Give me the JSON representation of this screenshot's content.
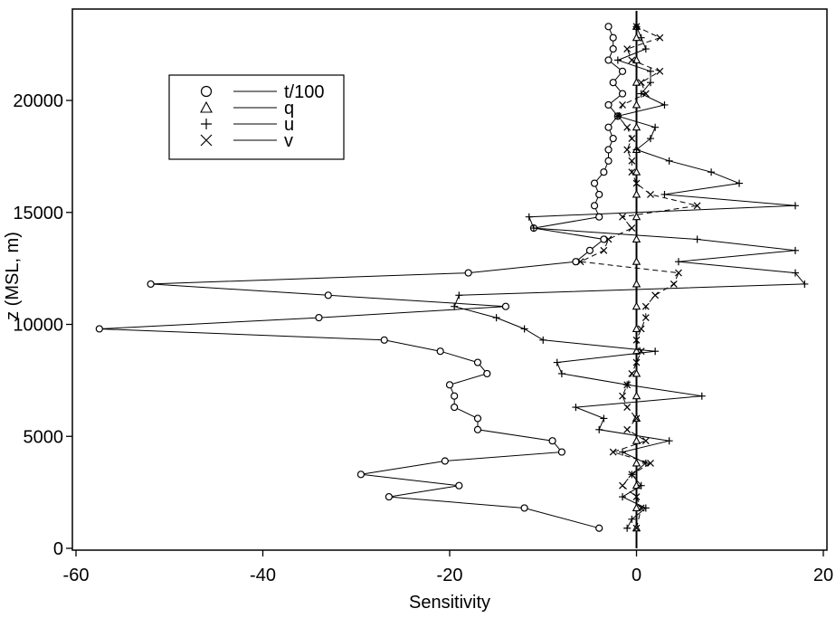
{
  "chart_data": {
    "type": "line",
    "xlabel": "Sensitivity",
    "ylabel": "z (MSL, m)",
    "xlim": [
      -60,
      20
    ],
    "ylim": [
      0,
      24000
    ],
    "xticks": [
      -60,
      -40,
      -20,
      0,
      20
    ],
    "yticks": [
      0,
      5000,
      10000,
      15000,
      20000
    ],
    "xtick_labels": [
      "-60",
      "-40",
      "-20",
      "0",
      "20"
    ],
    "ytick_labels": [
      "0",
      "5000",
      "10000",
      "15000",
      "20000"
    ],
    "grid": false,
    "legend_position": "top-left",
    "series": [
      {
        "name": "t/100",
        "marker": "circle",
        "line": "solid",
        "z": [
          900,
          1800,
          2300,
          2800,
          3300,
          3900,
          4300,
          4800,
          5300,
          5800,
          6300,
          6800,
          7300,
          7800,
          8300,
          8800,
          9300,
          9800,
          10300,
          10800,
          11300,
          11800,
          12300,
          12800,
          13300,
          13800,
          14300,
          14800,
          15300,
          15800,
          16300,
          16800,
          17300,
          17800,
          18300,
          18800,
          19300,
          19800,
          20300,
          20800,
          21300,
          21800,
          22300,
          22800,
          23300
        ],
        "values": [
          -4,
          -12,
          -26.5,
          -19,
          -29.5,
          -20.5,
          -8,
          -9,
          -17,
          -17,
          -19.5,
          -19.5,
          -20,
          -16,
          -17,
          -21,
          -27,
          -57.5,
          -34,
          -14,
          -33,
          -52,
          -18,
          -6.5,
          -5,
          -3.5,
          -11,
          -4,
          -4.5,
          -4,
          -4.5,
          -3.5,
          -3,
          -3,
          -2.5,
          -3,
          -2,
          -3,
          -1.5,
          -2.5,
          -1.5,
          -3,
          -2.5,
          -2.5,
          -3
        ]
      },
      {
        "name": "q",
        "marker": "triangle",
        "line": "solid",
        "z": [
          900,
          1800,
          2800,
          3800,
          4800,
          5800,
          6800,
          7800,
          8800,
          9800,
          10800,
          11800,
          12800,
          13800,
          14800,
          15800,
          16800,
          17800,
          18800,
          19800,
          20800,
          21800,
          22800,
          23300
        ],
        "values": [
          0,
          0,
          0,
          0,
          0,
          0,
          0,
          0,
          0,
          0,
          0,
          0,
          0,
          0,
          0,
          0,
          0,
          0,
          0,
          0,
          0,
          0,
          0,
          0
        ]
      },
      {
        "name": "u",
        "marker": "plus",
        "line": "solid",
        "z": [
          900,
          1300,
          1800,
          2300,
          2800,
          3300,
          3800,
          4300,
          4800,
          5300,
          5800,
          6300,
          6800,
          7300,
          7800,
          8300,
          8800,
          9300,
          9800,
          10300,
          10800,
          11300,
          11800,
          12300,
          12800,
          13300,
          13800,
          14300,
          14800,
          15300,
          15800,
          16300,
          16800,
          17300,
          17800,
          18300,
          18800,
          19300,
          19800,
          20300,
          20800,
          21300,
          21800,
          22300,
          22800,
          23300
        ],
        "values": [
          -1,
          -0.5,
          1,
          -1.5,
          0.5,
          -0.5,
          1,
          -1.5,
          3.5,
          -4,
          -3.5,
          -6.5,
          7,
          -1,
          -8,
          -8.5,
          2,
          -10,
          -12,
          -15,
          -19.5,
          -19,
          18,
          17,
          4.5,
          17,
          6.5,
          -11,
          -11.5,
          17,
          3,
          11,
          8,
          3.5,
          0,
          1.5,
          2,
          -2,
          3,
          0.5,
          1.5,
          1.5,
          -2,
          1,
          0.5,
          0
        ]
      },
      {
        "name": "v",
        "marker": "cross",
        "line": "dashed",
        "z": [
          900,
          1800,
          2300,
          2800,
          3300,
          3800,
          4300,
          4800,
          5300,
          5800,
          6300,
          6800,
          7300,
          7800,
          8300,
          8800,
          9300,
          9800,
          10300,
          10800,
          11300,
          11800,
          12300,
          12800,
          13300,
          13800,
          14300,
          14800,
          15300,
          15800,
          16300,
          16800,
          17300,
          17800,
          18300,
          18800,
          19300,
          19800,
          20300,
          20800,
          21300,
          21800,
          22300,
          22800,
          23300
        ],
        "values": [
          0,
          0.5,
          0,
          -1.5,
          -0.5,
          1.5,
          -2.5,
          1,
          -1,
          0,
          -1,
          -1.5,
          -1,
          -0.5,
          0,
          0.5,
          0,
          0.5,
          1,
          1,
          2,
          4,
          4.5,
          -6,
          -3.5,
          -3,
          -0.5,
          -1.5,
          6.5,
          1.5,
          0,
          -0.5,
          -0.5,
          -1,
          -0.5,
          -1,
          -2,
          -1.5,
          1,
          0.5,
          2.5,
          -0.5,
          -1,
          2.5,
          0
        ]
      }
    ]
  }
}
